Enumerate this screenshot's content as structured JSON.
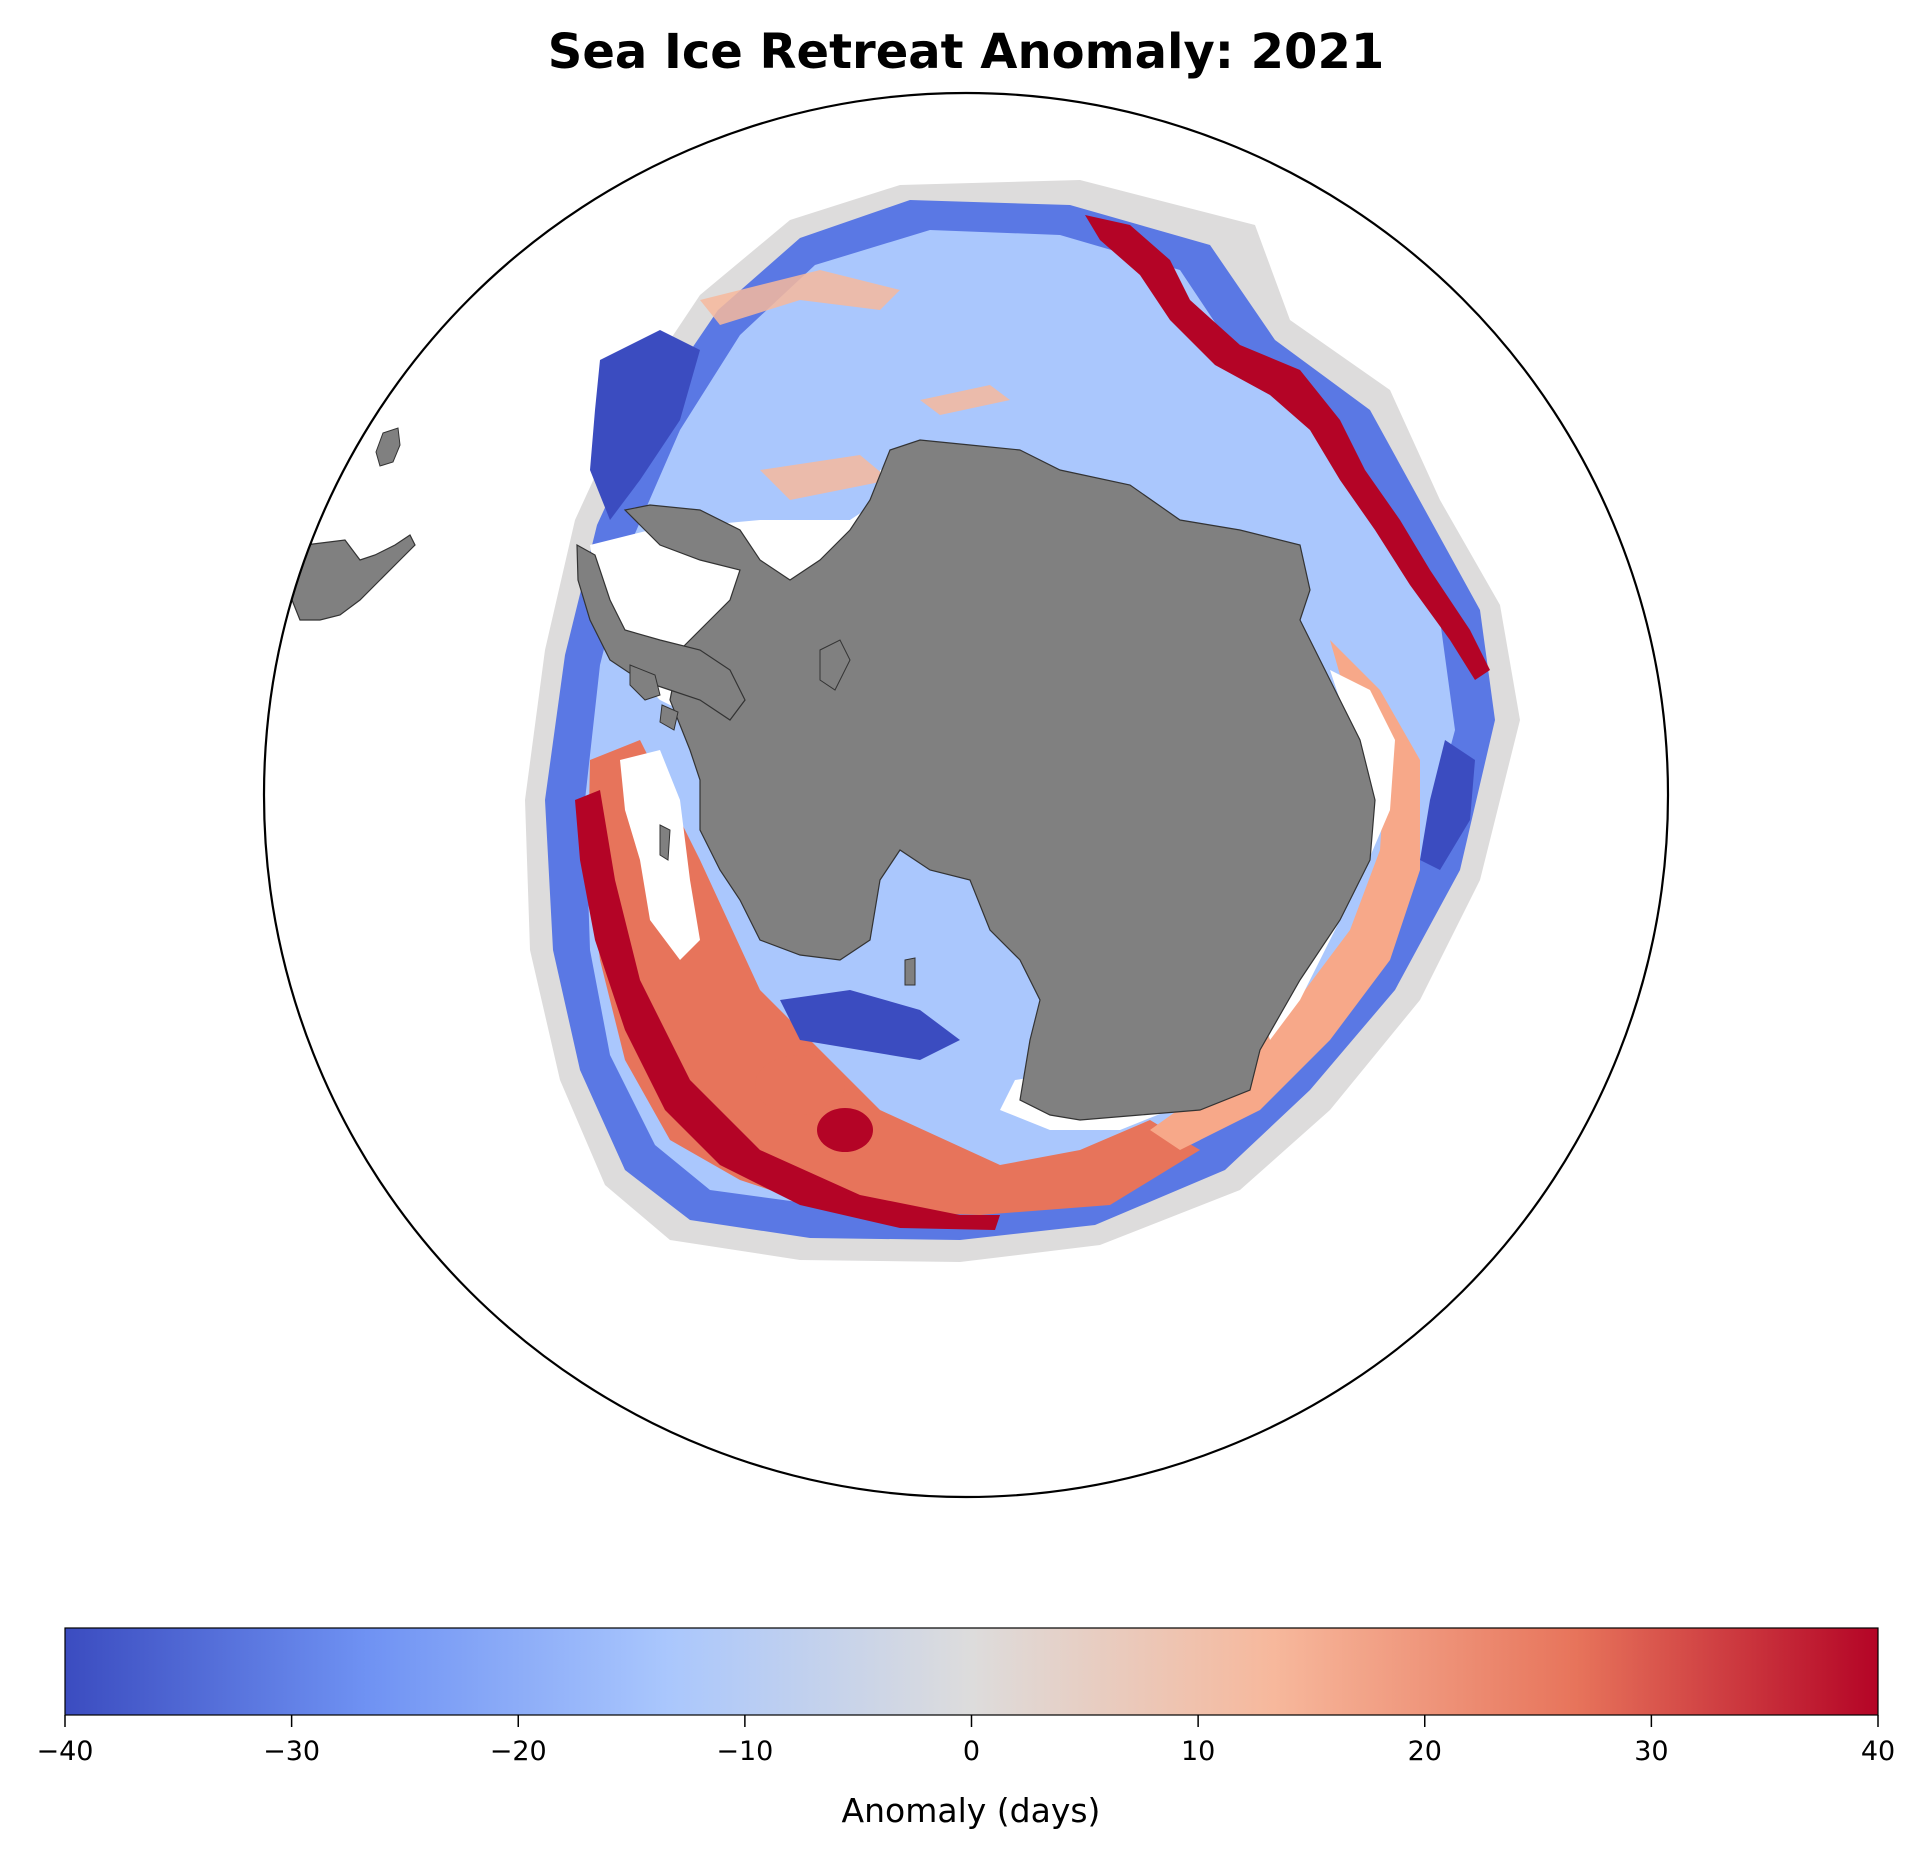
{
  "title": "Sea Ice Retreat Anomaly: 2021",
  "colorbar": {
    "label": "Anomaly (days)",
    "min": -40,
    "max": 40,
    "ticks": [
      {
        "value": -40,
        "label": "−40"
      },
      {
        "value": -30,
        "label": "−30"
      },
      {
        "value": -20,
        "label": "−20"
      },
      {
        "value": -10,
        "label": "−10"
      },
      {
        "value": 0,
        "label": "0"
      },
      {
        "value": 10,
        "label": "10"
      },
      {
        "value": 20,
        "label": "20"
      },
      {
        "value": 30,
        "label": "30"
      },
      {
        "value": 40,
        "label": "40"
      }
    ],
    "colormap": [
      "#3b4cc0",
      "#6f92f3",
      "#aac7fd",
      "#dddcdc",
      "#f7b89c",
      "#e7745b",
      "#b40426"
    ]
  },
  "map": {
    "projection": "south-polar-stereographic",
    "land_color": "#808080",
    "ocean_color": "#ffffff",
    "no_data_color": "#ffffff",
    "climatology_zero_color": "#dddcdc"
  }
}
